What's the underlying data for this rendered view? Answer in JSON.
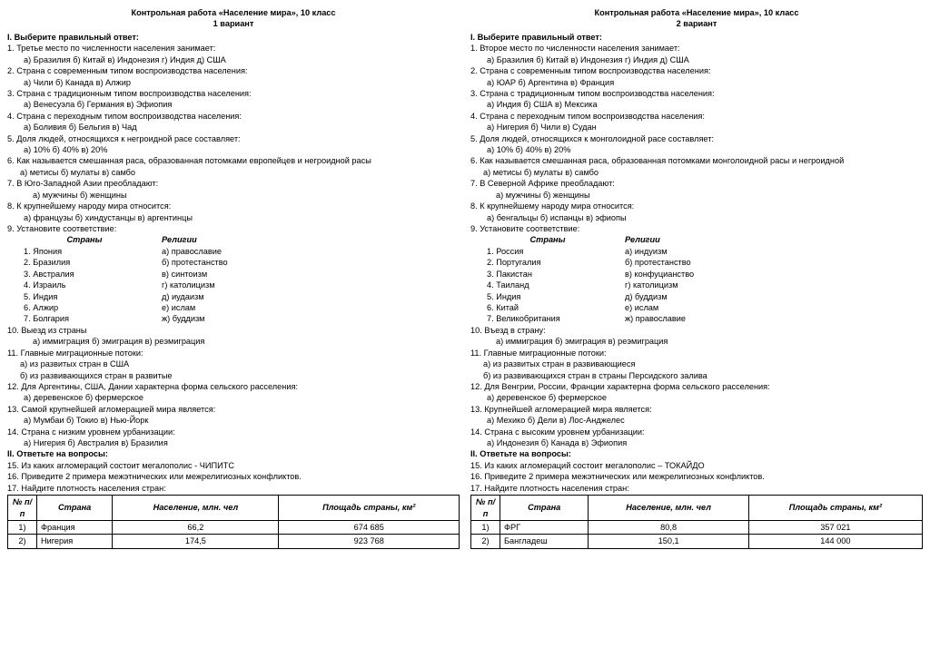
{
  "variants": [
    {
      "title": "Контрольная работа «Население мира», 10 класс",
      "subtitle": "1 вариант",
      "section1": "I. Выберите правильный ответ:",
      "q1": "1. Третье место по численности населения занимает:",
      "q1opts": "а) Бразилия    б) Китай   в)   Индонезия   г) Индия    д) США",
      "q2": "2. Страна с современным типом воспроизводства населения:",
      "q2opts": "а) Чили         б) Канада       в) Алжир",
      "q3": "3. Страна с традиционным типом воспроизводства населения:",
      "q3opts": "а) Венесуэла    б) Германия   в) Эфиопия",
      "q4": "4. Страна с переходным типом воспроизводства населения:",
      "q4opts": "а) Боливия    б) Бельгия    в) Чад",
      "q5": "5. Доля людей, относящихся к негроидной расе составляет:",
      "q5opts": "а) 10%         б) 40%       в) 20%",
      "q6": "6. Как называется смешанная раса, образованная потомками европейцев и негроидной расы",
      "q6opts": "а) метисы        б) мулаты         в) самбо",
      "q7": "7. В Юго-Западной Азии преобладают:",
      "q7opts": "а) мужчины        б) женщины",
      "q8": "8. К крупнейшему народу мира относится:",
      "q8opts": "а) французы      б) хиндустанцы      в) аргентинцы",
      "q9": "9. Установите соответствие:",
      "match_h_a": "Страны",
      "match_h_b": "Религии",
      "match": [
        {
          "a": "1. Япония",
          "b": "а) православие"
        },
        {
          "a": "2. Бразилия",
          "b": "б) протестанство"
        },
        {
          "a": "3. Австралия",
          "b": "в) синтоизм"
        },
        {
          "a": "4. Израиль",
          "b": "г) католицизм"
        },
        {
          "a": "5. Индия",
          "b": "д) иудаизм"
        },
        {
          "a": "6. Алжир",
          "b": "е) ислам"
        },
        {
          "a": "7. Болгария",
          "b": "ж) буддизм"
        }
      ],
      "q10": "10. Выезд из страны",
      "q10opts": "а) иммиграция      б) эмиграция       в) реэмиграция",
      "q11": "11. Главные миграционные потоки:",
      "q11a": "а) из развитых стран в США",
      "q11b": "б) из развивающихся стран в развитые",
      "q12": "12. Для Аргентины, США, Дании характерна форма сельского расселения:",
      "q12opts": "а) деревенское           б) фермерское",
      "q13": "13. Самой крупнейшей агломерацией мира является:",
      "q13opts": "а) Мумбаи      б) Токио     в) Нью-Йорк",
      "q14": "14. Страна с низким уровнем  урбанизации:",
      "q14opts": "а) Нигерия      б) Австралия      в) Бразилия",
      "section2": "II. Ответьте на вопросы:",
      "q15": "15.  Из каких агломераций состоит мегалополис - ЧИПИТС",
      "q16": "16.  Приведите 2 примера межэтнических или межрелигиозных конфликтов.",
      "q17": "17. Найдите плотность населения стран:",
      "th_num": "№ п/п",
      "th_country": "Страна",
      "th_pop": "Население, млн. чел",
      "th_area": "Площадь страны, км²",
      "rows": [
        {
          "n": "1)",
          "c": "Франция",
          "p": "66,2",
          "a": "674 685"
        },
        {
          "n": "2)",
          "c": "Нигерия",
          "p": "174,5",
          "a": "923 768"
        }
      ]
    },
    {
      "title": "Контрольная работа «Население мира», 10 класс",
      "subtitle": "2 вариант",
      "section1": "I. Выберите правильный ответ:",
      "q1": "1. Второе место по численности населения занимает:",
      "q1opts": "а) Бразилия    б) Китай   в)   Индонезия   г) Индия    д) США",
      "q2": "2. Страна с современным типом воспроизводства населения:",
      "q2opts": "а) ЮАР    б) Аргентина     в) Франция",
      "q3": "3. Страна с традиционным типом воспроизводства населения:",
      "q3opts": "а) Индия    б) США    в) Мексика",
      "q4": "4. Страна с переходным типом воспроизводства населения:",
      "q4opts": "а) Нигерия    б) Чили    в) Судан",
      "q5": "5. Доля людей, относящихся к монголоидной расе составляет:",
      "q5opts": "а) 10%         б) 40%       в) 20%",
      "q6": "6. Как называется смешанная раса, образованная потомками монголоидной расы и  негроидной",
      "q6opts": "а) метисы          б) мулаты          в) самбо",
      "q7": "7. В Северной Африке преобладают:",
      "q7opts": "а) мужчины             б) женщины",
      "q8": "8. К крупнейшему народу мира относится:",
      "q8opts": "а) бенгальцы       б) испанцы       в) эфиопы",
      "q9": "9. Установите соответствие:",
      "match_h_a": "Страны",
      "match_h_b": "Религии",
      "match": [
        {
          "a": "1. Россия",
          "b": "а) индуизм"
        },
        {
          "a": "2. Португалия",
          "b": "б) протестанство"
        },
        {
          "a": "3. Пакистан",
          "b": "в) конфуцианство"
        },
        {
          "a": "4. Таиланд",
          "b": "г) католицизм"
        },
        {
          "a": "5. Индия",
          "b": "д) буддизм"
        },
        {
          "a": "6. Китай",
          "b": "е) ислам"
        },
        {
          "a": "7. Великобритания",
          "b": "ж) православие"
        }
      ],
      "q10": "10. Въезд в страну:",
      "q10opts": "а) иммиграция       б) эмиграция        в) реэмиграция",
      "q11": "11. Главные миграционные потоки:",
      "q11a": "а) из развитых стран в развивающиеся",
      "q11b": "б) из развивающихся стран в страны Персидского залива",
      "q12": "12. Для Венгрии, России, Франции характерна форма сельского расселения:",
      "q12opts": "а) деревенское           б) фермерское",
      "q13": "13. Крупнейшей агломерацией мира является:",
      "q13opts": "а) Мехико      б) Дели       в) Лос-Анджелес",
      "q14": "14. Страна с высоким уровнем  урбанизации:",
      "q14opts": "а) Индонезия      б) Канада      в) Эфиопия",
      "section2": "II. Ответьте на вопросы:",
      "q15": "15. Из каких агломераций состоит мегалополис – ТОКАЙДО",
      "q16": "16. Приведите 2 примера межэтнических или межрелигиозных конфликтов.",
      "q17": "17. Найдите плотность населения стран:",
      "th_num": "№ п/п",
      "th_country": "Страна",
      "th_pop": "Население, млн. чел",
      "th_area": "Площадь страны, км²",
      "rows": [
        {
          "n": "1)",
          "c": "ФРГ",
          "p": "80,8",
          "a": "357 021"
        },
        {
          "n": "2)",
          "c": "Бангладеш",
          "p": "150,1",
          "a": "144 000"
        }
      ]
    }
  ]
}
